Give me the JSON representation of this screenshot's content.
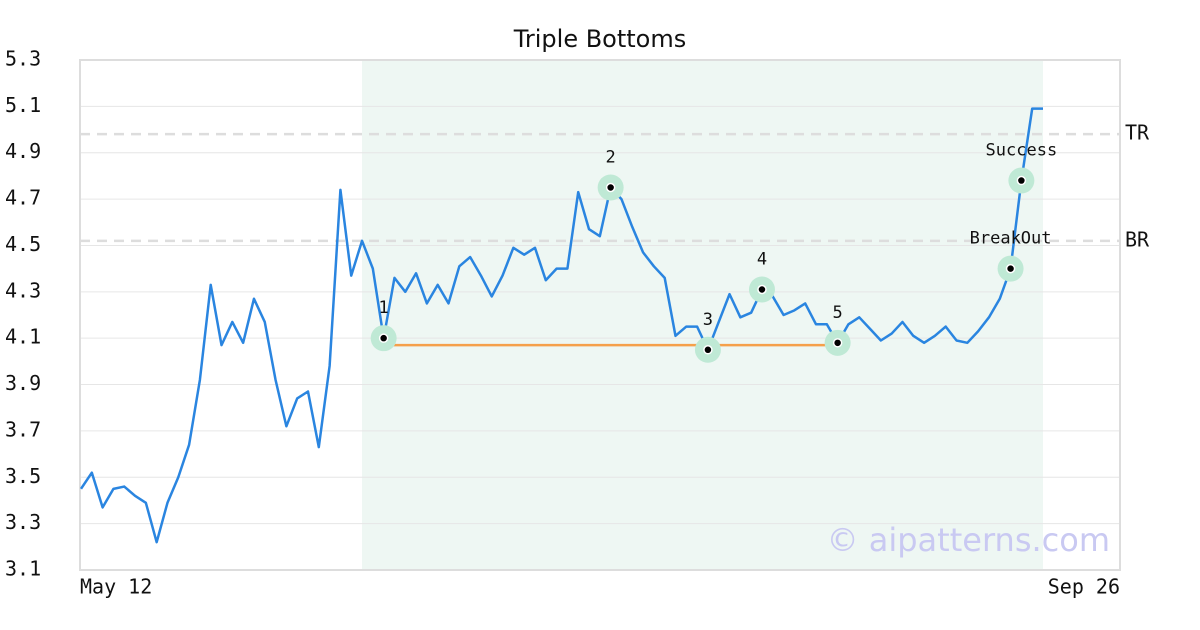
{
  "chart_data": {
    "type": "line",
    "title": "Triple Bottoms",
    "categories": [
      "May 12",
      null,
      null,
      null,
      null,
      null,
      null,
      null,
      null,
      null,
      null,
      null,
      null,
      null,
      null,
      null,
      null,
      null,
      null,
      null,
      null,
      null,
      null,
      null,
      null,
      null,
      null,
      null,
      null,
      null,
      null,
      null,
      null,
      null,
      null,
      null,
      null,
      null,
      null,
      null,
      null,
      null,
      null,
      null,
      null,
      null,
      null,
      null,
      null,
      null,
      null,
      null,
      null,
      null,
      null,
      null,
      null,
      null,
      null,
      null,
      null,
      null,
      null,
      null,
      null,
      null,
      null,
      null,
      null,
      null,
      null,
      null,
      null,
      null,
      null,
      null,
      null,
      null,
      null,
      null,
      null,
      null,
      null,
      null,
      null,
      null,
      null,
      null,
      null,
      "Sep 26"
    ],
    "series": [
      {
        "color": "#2a85e0",
        "values": [
          3.45,
          3.52,
          3.37,
          3.45,
          3.46,
          3.42,
          3.39,
          3.22,
          3.39,
          3.5,
          3.64,
          3.92,
          4.33,
          4.07,
          4.17,
          4.08,
          4.27,
          4.17,
          3.92,
          3.72,
          3.84,
          3.87,
          3.63,
          3.98,
          4.74,
          4.37,
          4.52,
          4.4,
          4.1,
          4.36,
          4.3,
          4.38,
          4.25,
          4.33,
          4.25,
          4.41,
          4.45,
          4.37,
          4.28,
          4.37,
          4.49,
          4.46,
          4.49,
          4.35,
          4.4,
          4.4,
          4.73,
          4.57,
          4.54,
          4.75,
          4.7,
          4.58,
          4.47,
          4.41,
          4.36,
          4.11,
          4.15,
          4.15,
          4.05,
          4.17,
          4.29,
          4.19,
          4.21,
          4.31,
          4.28,
          4.2,
          4.22,
          4.25,
          4.16,
          4.16,
          4.08,
          4.16,
          4.19,
          4.14,
          4.09,
          4.12,
          4.17,
          4.11,
          4.08,
          4.11,
          4.15,
          4.09,
          4.08,
          4.13,
          4.19,
          4.27,
          4.4,
          4.78,
          5.09,
          5.09
        ]
      }
    ],
    "ylim": [
      3.1,
      5.3
    ],
    "yticks": [
      3.1,
      3.3,
      3.5,
      3.7,
      3.9,
      4.1,
      4.3,
      4.5,
      4.7,
      4.9,
      5.1,
      5.3
    ],
    "grid": true,
    "highlight_start": 26,
    "support": {
      "value": 4.07,
      "from": 28,
      "to": 70,
      "color": "#f5a04a"
    },
    "levels": [
      {
        "label": "TR",
        "value": 4.98
      },
      {
        "label": "BR",
        "value": 4.52
      }
    ],
    "points": [
      {
        "label": "1",
        "index": 28
      },
      {
        "label": "2",
        "index": 49
      },
      {
        "label": "3",
        "index": 58
      },
      {
        "label": "4",
        "index": 63
      },
      {
        "label": "5",
        "index": 70
      },
      {
        "label": "BreakOut",
        "index": 86
      },
      {
        "label": "Success",
        "index": 87
      }
    ],
    "watermark": "© aipatterns.com"
  }
}
